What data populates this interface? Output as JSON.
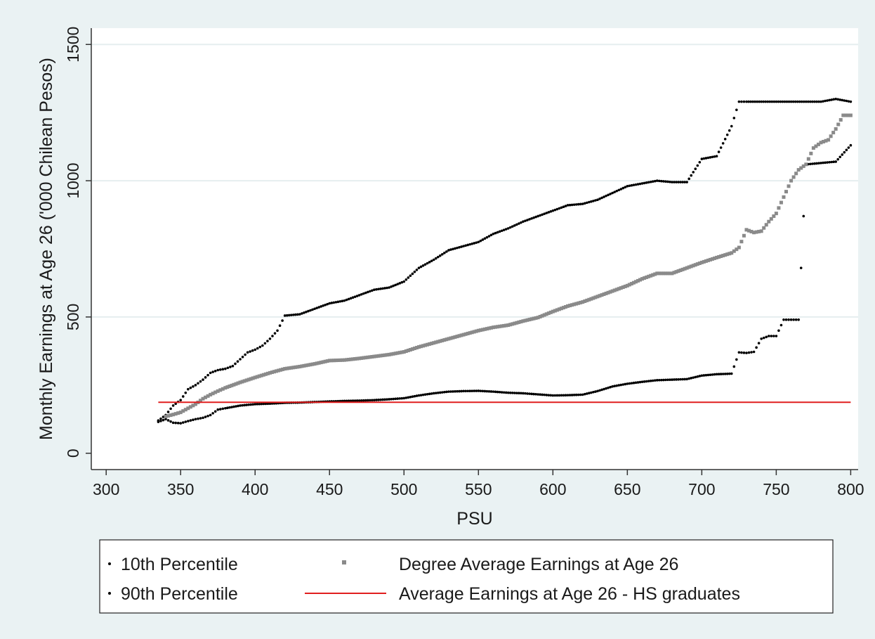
{
  "chart_data": {
    "type": "scatter",
    "xlabel": "PSU",
    "ylabel": "Monthly Earnings at Age 26 ('000 Chilean Pesos)",
    "xlim": [
      290,
      805
    ],
    "ylim": [
      -60,
      1560
    ],
    "xticks": [
      "300",
      "350",
      "400",
      "450",
      "500",
      "550",
      "600",
      "650",
      "700",
      "750",
      "800"
    ],
    "yticks": [
      "0",
      "500",
      "1000",
      "1500"
    ],
    "grid": "horizontal",
    "legend_position": "bottom",
    "colors": {
      "percentiles": "#000000",
      "degree_average": "#8a8a8a",
      "hs_average": "#e01e1e",
      "plot_background": "#ffffff",
      "outer_background": "#eaf2f3"
    },
    "series": [
      {
        "name": "10th Percentile",
        "marker": "dot",
        "x": [
          335,
          340,
          345,
          350,
          355,
          360,
          365,
          370,
          375,
          380,
          390,
          400,
          410,
          420,
          430,
          440,
          450,
          460,
          470,
          480,
          490,
          500,
          510,
          520,
          530,
          540,
          550,
          560,
          570,
          580,
          590,
          600,
          610,
          620,
          630,
          640,
          650,
          660,
          670,
          680,
          690,
          700,
          710,
          720,
          725,
          730,
          735,
          740,
          745,
          750,
          755,
          760,
          765,
          770,
          780,
          790,
          800
        ],
        "y": [
          115,
          125,
          112,
          110,
          118,
          125,
          130,
          140,
          160,
          165,
          175,
          180,
          182,
          185,
          186,
          188,
          190,
          192,
          193,
          195,
          198,
          202,
          212,
          220,
          226,
          228,
          229,
          226,
          222,
          220,
          216,
          212,
          213,
          215,
          228,
          245,
          255,
          262,
          268,
          270,
          272,
          285,
          290,
          292,
          370,
          368,
          372,
          420,
          430,
          430,
          490,
          490,
          490,
          1060,
          1065,
          1070,
          1130
        ]
      },
      {
        "name": "90th Percentile",
        "marker": "dot",
        "x": [
          335,
          340,
          345,
          350,
          355,
          360,
          365,
          370,
          375,
          380,
          385,
          390,
          395,
          400,
          405,
          410,
          415,
          420,
          430,
          440,
          450,
          460,
          470,
          480,
          490,
          500,
          510,
          520,
          530,
          540,
          550,
          560,
          570,
          580,
          590,
          600,
          610,
          620,
          630,
          640,
          650,
          660,
          670,
          680,
          690,
          700,
          710,
          720,
          725,
          730,
          740,
          750,
          760,
          770,
          780,
          790,
          800
        ],
        "y": [
          120,
          140,
          175,
          195,
          235,
          250,
          270,
          295,
          305,
          310,
          320,
          345,
          370,
          380,
          395,
          420,
          450,
          505,
          510,
          530,
          550,
          560,
          580,
          600,
          608,
          630,
          680,
          710,
          745,
          760,
          775,
          805,
          825,
          850,
          870,
          890,
          910,
          915,
          930,
          955,
          980,
          990,
          1000,
          995,
          995,
          1080,
          1090,
          1200,
          1290,
          1290,
          1290,
          1290,
          1290,
          1290,
          1290,
          1300,
          1290
        ]
      },
      {
        "name": "Degree Average Earnings at Age 26",
        "marker": "square",
        "x": [
          340,
          345,
          350,
          355,
          360,
          365,
          370,
          375,
          380,
          390,
          400,
          410,
          420,
          430,
          440,
          450,
          460,
          470,
          480,
          490,
          500,
          510,
          520,
          530,
          540,
          550,
          560,
          570,
          580,
          590,
          600,
          610,
          620,
          630,
          640,
          650,
          660,
          670,
          680,
          690,
          700,
          710,
          720,
          725,
          730,
          735,
          740,
          745,
          750,
          755,
          760,
          765,
          770,
          775,
          780,
          785,
          790,
          795,
          800
        ],
        "y": [
          135,
          142,
          150,
          165,
          180,
          200,
          215,
          228,
          240,
          260,
          278,
          295,
          310,
          318,
          328,
          340,
          342,
          348,
          355,
          362,
          372,
          390,
          405,
          420,
          435,
          450,
          462,
          470,
          485,
          498,
          520,
          540,
          555,
          575,
          595,
          615,
          640,
          660,
          660,
          680,
          700,
          718,
          735,
          755,
          820,
          810,
          815,
          850,
          880,
          940,
          1000,
          1040,
          1060,
          1120,
          1140,
          1150,
          1190,
          1240,
          1240
        ]
      },
      {
        "name": "Average Earnings at Age 26 - HS graduates",
        "marker": "line",
        "x": [
          335,
          800
        ],
        "y": [
          187,
          187
        ]
      }
    ]
  }
}
